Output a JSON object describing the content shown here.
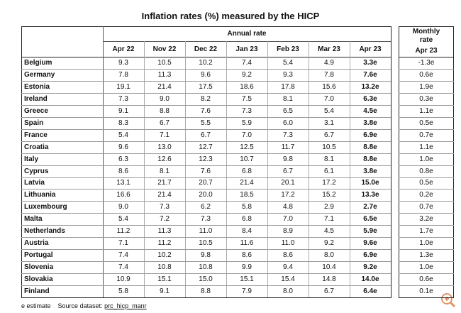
{
  "title": "Inflation rates (%) measured by the HICP",
  "table": {
    "group_header": "Annual rate",
    "monthly_header": "Monthly rate",
    "columns": [
      "Apr 22",
      "Nov 22",
      "Dec 22",
      "Jan 23",
      "Feb 23",
      "Mar 23",
      "Apr 23"
    ],
    "monthly_column": "Apr 23",
    "rows": [
      {
        "country": "Belgium",
        "annual": [
          "9.3",
          "10.5",
          "10.2",
          "7.4",
          "5.4",
          "4.9",
          "3.3e"
        ],
        "monthly": "-1.3e"
      },
      {
        "country": "Germany",
        "annual": [
          "7.8",
          "11.3",
          "9.6",
          "9.2",
          "9.3",
          "7.8",
          "7.6e"
        ],
        "monthly": "0.6e"
      },
      {
        "country": "Estonia",
        "annual": [
          "19.1",
          "21.4",
          "17.5",
          "18.6",
          "17.8",
          "15.6",
          "13.2e"
        ],
        "monthly": "1.9e"
      },
      {
        "country": "Ireland",
        "annual": [
          "7.3",
          "9.0",
          "8.2",
          "7.5",
          "8.1",
          "7.0",
          "6.3e"
        ],
        "monthly": "0.3e"
      },
      {
        "country": "Greece",
        "annual": [
          "9.1",
          "8.8",
          "7.6",
          "7.3",
          "6.5",
          "5.4",
          "4.5e"
        ],
        "monthly": "1.1e"
      },
      {
        "country": "Spain",
        "annual": [
          "8.3",
          "6.7",
          "5.5",
          "5.9",
          "6.0",
          "3.1",
          "3.8e"
        ],
        "monthly": "0.5e"
      },
      {
        "country": "France",
        "annual": [
          "5.4",
          "7.1",
          "6.7",
          "7.0",
          "7.3",
          "6.7",
          "6.9e"
        ],
        "monthly": "0.7e"
      },
      {
        "country": "Croatia",
        "annual": [
          "9.6",
          "13.0",
          "12.7",
          "12.5",
          "11.7",
          "10.5",
          "8.8e"
        ],
        "monthly": "1.1e"
      },
      {
        "country": "Italy",
        "annual": [
          "6.3",
          "12.6",
          "12.3",
          "10.7",
          "9.8",
          "8.1",
          "8.8e"
        ],
        "monthly": "1.0e"
      },
      {
        "country": "Cyprus",
        "annual": [
          "8.6",
          "8.1",
          "7.6",
          "6.8",
          "6.7",
          "6.1",
          "3.8e"
        ],
        "monthly": "0.8e"
      },
      {
        "country": "Latvia",
        "annual": [
          "13.1",
          "21.7",
          "20.7",
          "21.4",
          "20.1",
          "17.2",
          "15.0e"
        ],
        "monthly": "0.5e"
      },
      {
        "country": "Lithuania",
        "annual": [
          "16.6",
          "21.4",
          "20.0",
          "18.5",
          "17.2",
          "15.2",
          "13.3e"
        ],
        "monthly": "0.2e"
      },
      {
        "country": "Luxembourg",
        "annual": [
          "9.0",
          "7.3",
          "6.2",
          "5.8",
          "4.8",
          "2.9",
          "2.7e"
        ],
        "monthly": "0.7e"
      },
      {
        "country": "Malta",
        "annual": [
          "5.4",
          "7.2",
          "7.3",
          "6.8",
          "7.0",
          "7.1",
          "6.5e"
        ],
        "monthly": "3.2e"
      },
      {
        "country": "Netherlands",
        "annual": [
          "11.2",
          "11.3",
          "11.0",
          "8.4",
          "8.9",
          "4.5",
          "5.9e"
        ],
        "monthly": "1.7e"
      },
      {
        "country": "Austria",
        "annual": [
          "7.1",
          "11.2",
          "10.5",
          "11.6",
          "11.0",
          "9.2",
          "9.6e"
        ],
        "monthly": "1.0e"
      },
      {
        "country": "Portugal",
        "annual": [
          "7.4",
          "10.2",
          "9.8",
          "8.6",
          "8.6",
          "8.0",
          "6.9e"
        ],
        "monthly": "1.3e"
      },
      {
        "country": "Slovenia",
        "annual": [
          "7.4",
          "10.8",
          "10.8",
          "9.9",
          "9.4",
          "10.4",
          "9.2e"
        ],
        "monthly": "1.0e"
      },
      {
        "country": "Slovakia",
        "annual": [
          "10.9",
          "15.1",
          "15.0",
          "15.1",
          "15.4",
          "14.8",
          "14.0e"
        ],
        "monthly": "0.6e"
      },
      {
        "country": "Finland",
        "annual": [
          "5.8",
          "9.1",
          "8.8",
          "7.9",
          "8.0",
          "6.7",
          "6.4e"
        ],
        "monthly": "0.1e"
      }
    ]
  },
  "footer": {
    "note": "e estimate",
    "source_label": "Source dataset:",
    "source_link": "prc_hicp_manr"
  }
}
